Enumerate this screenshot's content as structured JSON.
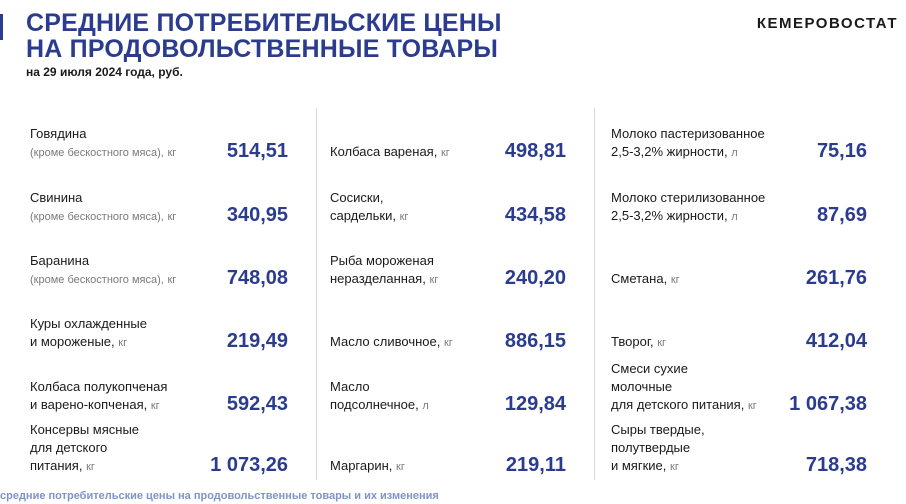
{
  "header": {
    "title_line1": "СРЕДНИЕ ПОТРЕБИТЕЛЬСКИЕ ЦЕНЫ",
    "title_line2": "НА ПРОДОВОЛЬСТВЕННЫЕ ТОВАРЫ",
    "subtitle": "на 29 июля 2024 года, руб.",
    "brand": "КЕМЕРОВОСТАТ"
  },
  "columns": [
    {
      "items": [
        {
          "line1": "Говядина",
          "line2": "(кроме бескостного мяса),",
          "unit": "кг",
          "value": "514,51"
        },
        {
          "line1": "Свинина",
          "line2": "(кроме бескостного мяса),",
          "unit": "кг",
          "value": "340,95"
        },
        {
          "line1": "Баранина",
          "line2": "(кроме бескостного мяса),",
          "unit": "кг",
          "value": "748,08"
        },
        {
          "line1": "Куры охлажденные",
          "line2": "и мороженые,",
          "unit": "кг",
          "value": "219,49"
        },
        {
          "line1": "Колбаса полукопченая",
          "line2": "и варено-копченая,",
          "unit": "кг",
          "value": "592,43"
        },
        {
          "line1": "Консервы мясные",
          "line2": "для детского",
          "line3": "питания,",
          "unit": "кг",
          "value": "1 073,26"
        }
      ]
    },
    {
      "items": [
        {
          "line1": "Колбаса вареная,",
          "unit": "кг",
          "value": "498,81"
        },
        {
          "line1": "Сосиски,",
          "line2": "сардельки,",
          "unit": "кг",
          "value": "434,58"
        },
        {
          "line1": "Рыба мороженая",
          "line2": "неразделанная,",
          "unit": "кг",
          "value": "240,20"
        },
        {
          "line1": "Масло сливочное,",
          "unit": "кг",
          "value": "886,15"
        },
        {
          "line1": "Масло",
          "line2": "подсолнечное,",
          "unit": "л",
          "value": "129,84"
        },
        {
          "line1": "Маргарин,",
          "unit": "кг",
          "value": "219,11"
        }
      ]
    },
    {
      "items": [
        {
          "line1": "Молоко пастеризованное",
          "line2": "2,5-3,2% жирности,",
          "unit": "л",
          "value": "75,16"
        },
        {
          "line1": "Молоко стерилизованное",
          "line2": "2,5-3,2% жирности,",
          "unit": "л",
          "value": "87,69"
        },
        {
          "line1": "Сметана,",
          "unit": "кг",
          "value": "261,76"
        },
        {
          "line1": "Творог,",
          "unit": "кг",
          "value": "412,04"
        },
        {
          "line1": "Смеси сухие",
          "line2": "молочные",
          "line3": "для детского питания,",
          "unit": "кг",
          "value": "1 067,38"
        },
        {
          "line1": "Сыры твердые,",
          "line2": "полутвердые",
          "line3": "и мягкие,",
          "unit": "кг",
          "value": "718,38"
        }
      ]
    }
  ],
  "footer": "средние потребительские цены на продовольственные товары и их изменения",
  "colors": {
    "accent": "#2b3c8f",
    "muted": "#7a7a7a",
    "footer": "#7f93c6"
  }
}
